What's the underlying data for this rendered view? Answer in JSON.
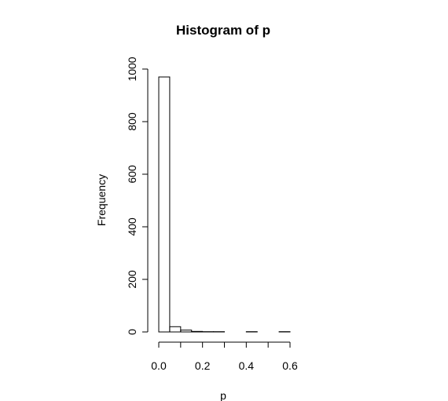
{
  "chart_data": {
    "type": "bar",
    "title": "Histogram of p",
    "xlabel": "p",
    "ylabel": "Frequency",
    "xlim": [
      0.0,
      0.6
    ],
    "ylim": [
      0,
      1000
    ],
    "x_ticks": [
      "0.0",
      "0.2",
      "0.4",
      "0.6"
    ],
    "y_ticks": [
      "0",
      "200",
      "400",
      "600",
      "800",
      "1000"
    ],
    "bins": [
      {
        "start": 0.0,
        "end": 0.05,
        "count": 970
      },
      {
        "start": 0.05,
        "end": 0.1,
        "count": 20
      },
      {
        "start": 0.1,
        "end": 0.15,
        "count": 7
      },
      {
        "start": 0.15,
        "end": 0.2,
        "count": 2
      },
      {
        "start": 0.2,
        "end": 0.25,
        "count": 1
      },
      {
        "start": 0.25,
        "end": 0.3,
        "count": 1
      },
      {
        "start": 0.3,
        "end": 0.35,
        "count": 0
      },
      {
        "start": 0.35,
        "end": 0.4,
        "count": 0
      },
      {
        "start": 0.4,
        "end": 0.45,
        "count": 1
      },
      {
        "start": 0.45,
        "end": 0.5,
        "count": 0
      },
      {
        "start": 0.5,
        "end": 0.55,
        "count": 0
      },
      {
        "start": 0.55,
        "end": 0.6,
        "count": 1
      }
    ],
    "grid": false,
    "legend": "none"
  }
}
